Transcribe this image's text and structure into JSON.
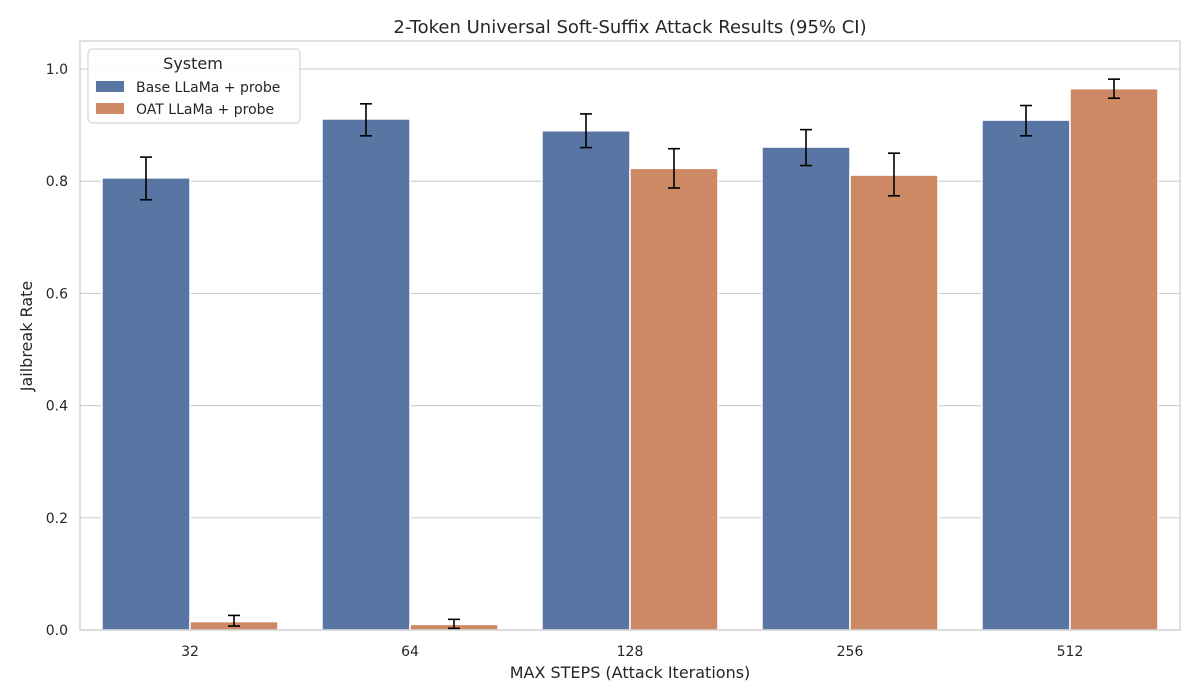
{
  "chart_data": {
    "type": "bar",
    "title": "2-Token Universal Soft-Suffix Attack Results (95% CI)",
    "xlabel": "MAX STEPS (Attack Iterations)",
    "ylabel": "Jailbreak Rate",
    "categories": [
      "32",
      "64",
      "128",
      "256",
      "512"
    ],
    "ylim": [
      0,
      1.05
    ],
    "yticks": [
      "0.0",
      "0.2",
      "0.4",
      "0.6",
      "0.8",
      "1.0"
    ],
    "grid": true,
    "legend": {
      "title": "System",
      "placement": "top-left"
    },
    "series": [
      {
        "name": "Base LLaMa + probe",
        "color": "#5975a4",
        "values": [
          0.806,
          0.911,
          0.89,
          0.861,
          0.909
        ],
        "ci_low": [
          0.767,
          0.881,
          0.86,
          0.828,
          0.881
        ],
        "ci_high": [
          0.843,
          0.938,
          0.92,
          0.892,
          0.935
        ]
      },
      {
        "name": "OAT LLaMa + probe",
        "color": "#cc8963",
        "values": [
          0.015,
          0.01,
          0.823,
          0.811,
          0.965
        ],
        "ci_low": [
          0.007,
          0.003,
          0.788,
          0.774,
          0.948
        ],
        "ci_high": [
          0.026,
          0.019,
          0.858,
          0.85,
          0.982
        ]
      }
    ]
  }
}
